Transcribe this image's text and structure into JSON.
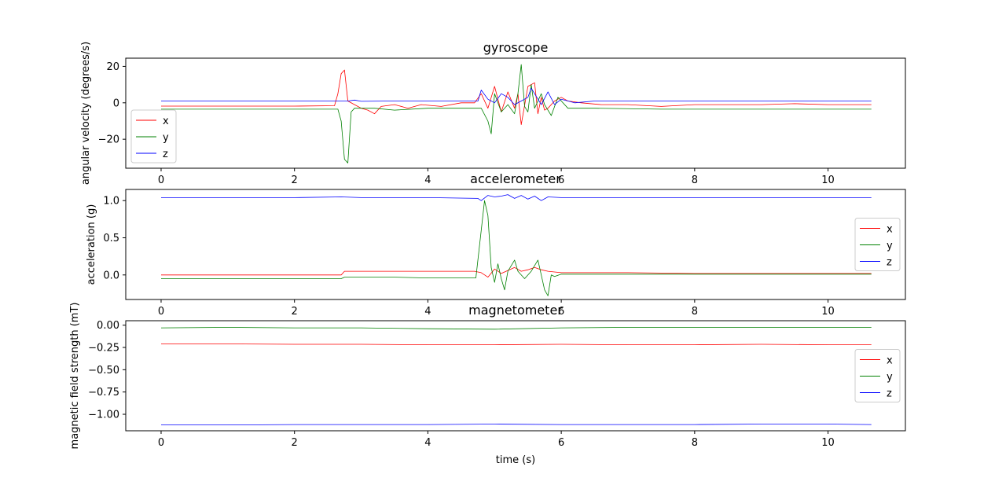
{
  "colors": {
    "x": "#ff0000",
    "y": "#008000",
    "z": "#0000ff"
  },
  "chart_data": [
    {
      "type": "line",
      "title": "gyroscope",
      "xlabel": "",
      "ylabel": "angular velocity (degrees/s)",
      "xlim": [
        -0.53,
        11.16
      ],
      "ylim": [
        -35.9,
        24.5
      ],
      "xticks": [
        0,
        2,
        4,
        6,
        8,
        10
      ],
      "xtick_labels": [
        "0",
        "2",
        "4",
        "6",
        "8",
        "10"
      ],
      "yticks": [
        -20,
        0,
        20
      ],
      "ytick_labels": [
        "−20",
        "0",
        "20"
      ],
      "legend": "lower-left",
      "series": [
        {
          "name": "x",
          "color": "#ff0000",
          "points": [
            [
              0,
              -1.8
            ],
            [
              1,
              -1.8
            ],
            [
              2,
              -1.8
            ],
            [
              2.6,
              -1.6
            ],
            [
              2.65,
              5
            ],
            [
              2.7,
              16
            ],
            [
              2.75,
              18
            ],
            [
              2.8,
              1
            ],
            [
              2.9,
              -1
            ],
            [
              3.0,
              -3
            ],
            [
              3.1,
              -4
            ],
            [
              3.2,
              -6
            ],
            [
              3.3,
              -2
            ],
            [
              3.5,
              -1
            ],
            [
              3.7,
              -3
            ],
            [
              3.9,
              -1
            ],
            [
              4.2,
              -2
            ],
            [
              4.5,
              0
            ],
            [
              4.7,
              0
            ],
            [
              4.8,
              5
            ],
            [
              4.9,
              -3
            ],
            [
              5.0,
              9
            ],
            [
              5.1,
              -5
            ],
            [
              5.2,
              6
            ],
            [
              5.3,
              -3
            ],
            [
              5.35,
              5
            ],
            [
              5.4,
              -12
            ],
            [
              5.5,
              9
            ],
            [
              5.6,
              11
            ],
            [
              5.65,
              -6
            ],
            [
              5.7,
              3
            ],
            [
              5.75,
              -4
            ],
            [
              5.8,
              -3
            ],
            [
              5.9,
              1
            ],
            [
              6.0,
              3
            ],
            [
              6.1,
              1
            ],
            [
              6.3,
              0
            ],
            [
              6.6,
              -1
            ],
            [
              7.0,
              -1
            ],
            [
              7.5,
              -2
            ],
            [
              8.0,
              -1
            ],
            [
              8.5,
              -1
            ],
            [
              9.0,
              -1
            ],
            [
              9.5,
              -0.5
            ],
            [
              10.0,
              -1
            ],
            [
              10.65,
              -1
            ]
          ]
        },
        {
          "name": "y",
          "color": "#008000",
          "points": [
            [
              0,
              -3.5
            ],
            [
              1,
              -3.5
            ],
            [
              2,
              -3.5
            ],
            [
              2.65,
              -3.5
            ],
            [
              2.7,
              -10
            ],
            [
              2.75,
              -31
            ],
            [
              2.8,
              -33
            ],
            [
              2.85,
              -5
            ],
            [
              2.9,
              -3
            ],
            [
              3.2,
              -3
            ],
            [
              3.5,
              -4
            ],
            [
              4.0,
              -3
            ],
            [
              4.5,
              -3
            ],
            [
              4.8,
              -3
            ],
            [
              4.9,
              -10
            ],
            [
              4.95,
              -17
            ],
            [
              5.0,
              5
            ],
            [
              5.1,
              -5
            ],
            [
              5.2,
              -1
            ],
            [
              5.3,
              -6
            ],
            [
              5.35,
              5
            ],
            [
              5.4,
              21
            ],
            [
              5.45,
              -2
            ],
            [
              5.5,
              -5
            ],
            [
              5.55,
              10
            ],
            [
              5.6,
              -3
            ],
            [
              5.7,
              5
            ],
            [
              5.75,
              -1
            ],
            [
              5.85,
              -7
            ],
            [
              5.95,
              3
            ],
            [
              6.1,
              -3
            ],
            [
              6.5,
              -3
            ],
            [
              7.5,
              -3.5
            ],
            [
              9.0,
              -3.5
            ],
            [
              10.65,
              -3.5
            ]
          ]
        },
        {
          "name": "z",
          "color": "#0000ff",
          "points": [
            [
              0,
              1
            ],
            [
              1,
              1
            ],
            [
              2,
              1
            ],
            [
              2.8,
              1
            ],
            [
              2.9,
              1.5
            ],
            [
              3.0,
              0.8
            ],
            [
              3.5,
              1
            ],
            [
              4.5,
              1
            ],
            [
              4.75,
              1
            ],
            [
              4.8,
              7
            ],
            [
              4.9,
              2
            ],
            [
              5.0,
              0
            ],
            [
              5.1,
              5
            ],
            [
              5.2,
              3
            ],
            [
              5.3,
              -1
            ],
            [
              5.4,
              1
            ],
            [
              5.5,
              3
            ],
            [
              5.55,
              8
            ],
            [
              5.6,
              5
            ],
            [
              5.7,
              -1
            ],
            [
              5.8,
              6
            ],
            [
              5.9,
              -1
            ],
            [
              6.0,
              2
            ],
            [
              6.2,
              0
            ],
            [
              6.5,
              1
            ],
            [
              7.5,
              1
            ],
            [
              9.0,
              1
            ],
            [
              10.65,
              1
            ]
          ]
        }
      ]
    },
    {
      "type": "line",
      "title": "accelerometer",
      "xlabel": "",
      "ylabel": "acceleration (g)",
      "xlim": [
        -0.53,
        11.16
      ],
      "ylim": [
        -0.33,
        1.15
      ],
      "xticks": [
        0,
        2,
        4,
        6,
        8,
        10
      ],
      "xtick_labels": [
        "0",
        "2",
        "4",
        "6",
        "8",
        "10"
      ],
      "yticks": [
        0.0,
        0.5,
        1.0
      ],
      "ytick_labels": [
        "0.0",
        "0.5",
        "1.0"
      ],
      "legend": "center-right",
      "series": [
        {
          "name": "x",
          "color": "#ff0000",
          "points": [
            [
              0,
              0.0
            ],
            [
              1,
              0.0
            ],
            [
              2,
              0.0
            ],
            [
              2.7,
              0.0
            ],
            [
              2.75,
              0.05
            ],
            [
              3.5,
              0.05
            ],
            [
              4.0,
              0.05
            ],
            [
              4.7,
              0.05
            ],
            [
              4.8,
              0.03
            ],
            [
              4.9,
              -0.03
            ],
            [
              5.0,
              0.08
            ],
            [
              5.1,
              0.02
            ],
            [
              5.2,
              0.06
            ],
            [
              5.3,
              0.1
            ],
            [
              5.4,
              0.05
            ],
            [
              5.5,
              0.07
            ],
            [
              5.6,
              0.1
            ],
            [
              5.7,
              0.07
            ],
            [
              5.8,
              0.05
            ],
            [
              5.9,
              0.04
            ],
            [
              6.0,
              0.03
            ],
            [
              7.0,
              0.03
            ],
            [
              8.0,
              0.02
            ],
            [
              9.0,
              0.02
            ],
            [
              10.65,
              0.02
            ]
          ]
        },
        {
          "name": "y",
          "color": "#008000",
          "points": [
            [
              0,
              -0.05
            ],
            [
              1,
              -0.05
            ],
            [
              2,
              -0.05
            ],
            [
              2.7,
              -0.05
            ],
            [
              2.75,
              -0.03
            ],
            [
              3.5,
              -0.03
            ],
            [
              4.0,
              -0.04
            ],
            [
              4.72,
              -0.04
            ],
            [
              4.8,
              0.6
            ],
            [
              4.85,
              1.0
            ],
            [
              4.9,
              0.8
            ],
            [
              4.95,
              0.1
            ],
            [
              5.0,
              -0.1
            ],
            [
              5.05,
              0.15
            ],
            [
              5.1,
              -0.05
            ],
            [
              5.15,
              -0.2
            ],
            [
              5.2,
              0.05
            ],
            [
              5.3,
              0.2
            ],
            [
              5.35,
              0.05
            ],
            [
              5.45,
              -0.05
            ],
            [
              5.55,
              0.05
            ],
            [
              5.65,
              0.2
            ],
            [
              5.7,
              0.0
            ],
            [
              5.75,
              -0.2
            ],
            [
              5.8,
              -0.28
            ],
            [
              5.85,
              0.0
            ],
            [
              5.9,
              -0.02
            ],
            [
              6.0,
              0.01
            ],
            [
              7.0,
              0.01
            ],
            [
              8.0,
              0.01
            ],
            [
              9.0,
              0.01
            ],
            [
              10.65,
              0.01
            ]
          ]
        },
        {
          "name": "z",
          "color": "#0000ff",
          "points": [
            [
              0,
              1.04
            ],
            [
              1,
              1.04
            ],
            [
              2,
              1.04
            ],
            [
              2.7,
              1.05
            ],
            [
              3.0,
              1.04
            ],
            [
              4.0,
              1.04
            ],
            [
              4.75,
              1.03
            ],
            [
              4.8,
              1.0
            ],
            [
              4.9,
              1.07
            ],
            [
              5.0,
              1.05
            ],
            [
              5.1,
              1.06
            ],
            [
              5.2,
              1.08
            ],
            [
              5.3,
              1.03
            ],
            [
              5.4,
              1.07
            ],
            [
              5.5,
              1.02
            ],
            [
              5.6,
              1.06
            ],
            [
              5.7,
              1.0
            ],
            [
              5.8,
              1.05
            ],
            [
              6.0,
              1.04
            ],
            [
              7.0,
              1.04
            ],
            [
              8.0,
              1.04
            ],
            [
              9.0,
              1.04
            ],
            [
              10.65,
              1.04
            ]
          ]
        }
      ]
    },
    {
      "type": "line",
      "title": "magnetometer",
      "xlabel": "time (s)",
      "ylabel": "magnetic field strength (mT)",
      "xlim": [
        -0.53,
        11.16
      ],
      "ylim": [
        -1.185,
        0.05
      ],
      "xticks": [
        0,
        2,
        4,
        6,
        8,
        10
      ],
      "xtick_labels": [
        "0",
        "2",
        "4",
        "6",
        "8",
        "10"
      ],
      "yticks": [
        0.0,
        -0.25,
        -0.5,
        -0.75,
        -1.0
      ],
      "ytick_labels": [
        "0.00",
        "−0.25",
        "−0.50",
        "−0.75",
        "−1.00"
      ],
      "legend": "center-right",
      "series": [
        {
          "name": "x",
          "color": "#ff0000",
          "points": [
            [
              0,
              -0.21
            ],
            [
              1,
              -0.21
            ],
            [
              2,
              -0.215
            ],
            [
              3,
              -0.215
            ],
            [
              4,
              -0.22
            ],
            [
              5,
              -0.22
            ],
            [
              6,
              -0.215
            ],
            [
              7,
              -0.22
            ],
            [
              8,
              -0.22
            ],
            [
              9,
              -0.215
            ],
            [
              10,
              -0.22
            ],
            [
              10.65,
              -0.22
            ]
          ]
        },
        {
          "name": "y",
          "color": "#008000",
          "points": [
            [
              0,
              -0.03
            ],
            [
              1,
              -0.025
            ],
            [
              2,
              -0.03
            ],
            [
              3,
              -0.03
            ],
            [
              4,
              -0.04
            ],
            [
              5,
              -0.045
            ],
            [
              6,
              -0.03
            ],
            [
              7,
              -0.025
            ],
            [
              8,
              -0.025
            ],
            [
              9,
              -0.025
            ],
            [
              10,
              -0.025
            ],
            [
              10.65,
              -0.025
            ]
          ]
        },
        {
          "name": "z",
          "color": "#0000ff",
          "points": [
            [
              0,
              -1.12
            ],
            [
              1,
              -1.12
            ],
            [
              2,
              -1.115
            ],
            [
              3,
              -1.115
            ],
            [
              4,
              -1.115
            ],
            [
              5,
              -1.11
            ],
            [
              6,
              -1.115
            ],
            [
              7,
              -1.115
            ],
            [
              8,
              -1.115
            ],
            [
              9,
              -1.11
            ],
            [
              10,
              -1.11
            ],
            [
              10.65,
              -1.115
            ]
          ]
        }
      ]
    }
  ]
}
